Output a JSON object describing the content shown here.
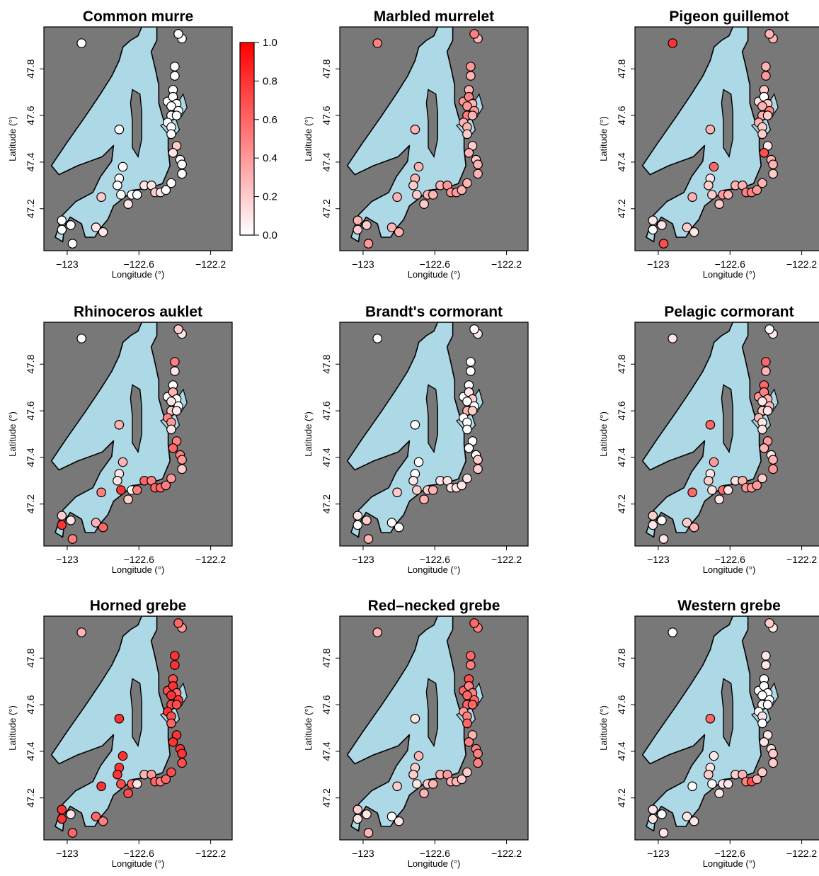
{
  "figure": {
    "x_label": "Longitude (°)",
    "y_label": "Latitude (°)",
    "x_ticks": [
      -123,
      -122.6,
      -122.2
    ],
    "x_tick_labels": [
      "−123",
      "−122.6",
      "−122.2"
    ],
    "y_ticks": [
      47.2,
      47.4,
      47.6,
      47.8
    ],
    "y_tick_labels": [
      "47.2",
      "47.4",
      "47.6",
      "47.8"
    ],
    "x_range": [
      -123.13,
      -122.08
    ],
    "y_range": [
      47.02,
      47.98
    ],
    "colors": {
      "land": "#787878",
      "water": "#add8e6",
      "low": "#ffffff",
      "high": "#ff0000"
    }
  },
  "colorbar": {
    "range": [
      0,
      1
    ],
    "ticks": [
      0,
      0.2,
      0.4,
      0.6,
      0.8,
      1
    ],
    "tick_labels": [
      "0.0",
      "0.2",
      "0.4",
      "0.6",
      "0.8",
      "1.0"
    ]
  },
  "chart_data": {
    "type": "scatter",
    "sites": [
      [
        -122.92,
        47.91
      ],
      [
        -122.36,
        47.93
      ],
      [
        -122.38,
        47.95
      ],
      [
        -122.4,
        47.81
      ],
      [
        -122.4,
        47.77
      ],
      [
        -122.41,
        47.71
      ],
      [
        -122.44,
        47.66
      ],
      [
        -122.41,
        47.68
      ],
      [
        -122.39,
        47.65
      ],
      [
        -122.42,
        47.64
      ],
      [
        -122.38,
        47.62
      ],
      [
        -122.42,
        47.6
      ],
      [
        -122.39,
        47.6
      ],
      [
        -122.44,
        47.57
      ],
      [
        -122.42,
        47.55
      ],
      [
        -122.42,
        47.52
      ],
      [
        -122.71,
        47.54
      ],
      [
        -122.39,
        47.47
      ],
      [
        -122.41,
        47.44
      ],
      [
        -122.37,
        47.41
      ],
      [
        -122.36,
        47.39
      ],
      [
        -122.36,
        47.35
      ],
      [
        -122.69,
        47.38
      ],
      [
        -122.71,
        47.33
      ],
      [
        -122.72,
        47.3
      ],
      [
        -122.7,
        47.26
      ],
      [
        -122.64,
        47.26
      ],
      [
        -122.61,
        47.26
      ],
      [
        -122.57,
        47.3
      ],
      [
        -122.53,
        47.3
      ],
      [
        -122.51,
        47.27
      ],
      [
        -122.48,
        47.27
      ],
      [
        -122.45,
        47.28
      ],
      [
        -122.42,
        47.31
      ],
      [
        -122.81,
        47.25
      ],
      [
        -122.66,
        47.22
      ],
      [
        -123.03,
        47.15
      ],
      [
        -123.03,
        47.11
      ],
      [
        -122.98,
        47.13
      ],
      [
        -122.97,
        47.05
      ],
      [
        -122.84,
        47.12
      ],
      [
        -122.8,
        47.1
      ]
    ],
    "panels": [
      {
        "species": "Common murre",
        "values": [
          0,
          0,
          0,
          0,
          0,
          0,
          0,
          0,
          0,
          0,
          0,
          0,
          0,
          0,
          0,
          0,
          0,
          0.2,
          0.1,
          0,
          0,
          0,
          0,
          0,
          0,
          0,
          0,
          0,
          0.1,
          0.1,
          0.2,
          0.1,
          0,
          0,
          0.2,
          0.1,
          0,
          0,
          0,
          0,
          0.1,
          0.1
        ]
      },
      {
        "species": "Marbled murrelet",
        "values": [
          0.5,
          0.3,
          0.5,
          0.4,
          0.3,
          0.3,
          0.4,
          0.5,
          0.3,
          0.4,
          0.4,
          0.5,
          0.3,
          0.3,
          0.3,
          0.2,
          0.3,
          0.2,
          0.3,
          0.2,
          0.3,
          0.3,
          0.3,
          0.3,
          0.2,
          0.2,
          0.3,
          0.3,
          0.3,
          0.4,
          0.4,
          0.4,
          0.3,
          0.3,
          0.3,
          0.2,
          0.3,
          0.2,
          0.2,
          0.4,
          0.3,
          0.3
        ]
      },
      {
        "species": "Pigeon guillemot",
        "values": [
          0.8,
          0.3,
          0.3,
          0.3,
          0.4,
          0.2,
          0.1,
          0,
          0.2,
          0.3,
          0.5,
          0.3,
          0.2,
          0.3,
          0.2,
          0.2,
          0.3,
          0.1,
          0.7,
          0.3,
          0.3,
          0.2,
          0.6,
          0.1,
          0.2,
          0.2,
          0.4,
          0.3,
          0.3,
          0.3,
          0.5,
          0.5,
          0.4,
          0.3,
          0.3,
          0.2,
          0.1,
          0,
          0.1,
          0.7,
          0.2,
          0.1
        ]
      },
      {
        "species": "Rhinoceros auklet",
        "values": [
          0,
          0.1,
          0.2,
          0.5,
          0.1,
          0,
          0,
          0.3,
          0,
          0.1,
          0,
          0.2,
          0.1,
          0.5,
          0.4,
          0.1,
          0.3,
          0.5,
          0.6,
          0.5,
          0.4,
          0.2,
          0.3,
          0.1,
          0.1,
          0.8,
          0,
          0.5,
          0.6,
          0.5,
          0.6,
          0.6,
          0.5,
          0.4,
          0.5,
          0.2,
          0.2,
          0.8,
          0.1,
          0.5,
          0.3,
          0.6
        ]
      },
      {
        "species": "Brandt's cormorant",
        "values": [
          0,
          0.1,
          0,
          0,
          0,
          0,
          0,
          0.1,
          0.2,
          0,
          0,
          0.3,
          0.2,
          0,
          0,
          0,
          0,
          0,
          0,
          0,
          0.2,
          0.2,
          0,
          0,
          0.1,
          0.2,
          0.2,
          0.3,
          0.1,
          0.1,
          0.1,
          0.1,
          0.1,
          0.1,
          0.2,
          0.3,
          0.1,
          0,
          0.2,
          0.3,
          0,
          0
        ]
      },
      {
        "species": "Pelagic cormorant",
        "values": [
          0.1,
          0.1,
          0,
          0.6,
          0.3,
          0.6,
          0.4,
          0.5,
          0.3,
          0.1,
          0.3,
          0.2,
          0.1,
          0.3,
          0.1,
          0.1,
          0.6,
          0.4,
          0.3,
          0.1,
          0.3,
          0.4,
          0.4,
          0.1,
          0.2,
          0.1,
          0.6,
          0.1,
          0.1,
          0.3,
          0.4,
          0.4,
          0.4,
          0.2,
          0.6,
          0.1,
          0.2,
          0.1,
          0,
          0.1,
          0.2,
          0.3
        ]
      },
      {
        "species": "Horned grebe",
        "values": [
          0.3,
          0.4,
          0.6,
          0.8,
          0.8,
          0.7,
          0.7,
          0.8,
          0.6,
          0.8,
          0.8,
          0.7,
          0.7,
          0.8,
          0.7,
          0.6,
          0.8,
          0.8,
          0.8,
          0.8,
          0.8,
          0.7,
          0.8,
          0.8,
          0.8,
          0.7,
          0.6,
          0.1,
          0.3,
          0.4,
          0.6,
          0.5,
          0.6,
          0.7,
          0.8,
          0.7,
          0.8,
          0.8,
          0.1,
          0.6,
          0.6,
          0.5
        ]
      },
      {
        "species": "Red–necked grebe",
        "values": [
          0.3,
          0.5,
          0.6,
          0.6,
          0.5,
          0.7,
          0.6,
          0.5,
          0.5,
          0.6,
          0.6,
          0.6,
          0.6,
          0.4,
          0.5,
          0.6,
          0.1,
          0.3,
          0.5,
          0.5,
          0.5,
          0.5,
          0.3,
          0.2,
          0.2,
          0.1,
          0.2,
          0.3,
          0.3,
          0.4,
          0.3,
          0.3,
          0.2,
          0.2,
          0.2,
          0.3,
          0.2,
          0.1,
          0.1,
          0.3,
          0,
          0.1
        ]
      },
      {
        "species": "Western grebe",
        "values": [
          0,
          0.1,
          0.2,
          0.1,
          0.1,
          0,
          0,
          0,
          0,
          0,
          0,
          0,
          0,
          0,
          0.1,
          0,
          0.6,
          0.1,
          0.1,
          0.1,
          0.2,
          0.2,
          0.1,
          0.1,
          0.2,
          0,
          0.1,
          0.1,
          0.2,
          0.3,
          0.5,
          0.7,
          0.3,
          0.2,
          0,
          0.1,
          0.1,
          0.1,
          0,
          0.1,
          0.1,
          0.1
        ]
      }
    ]
  }
}
